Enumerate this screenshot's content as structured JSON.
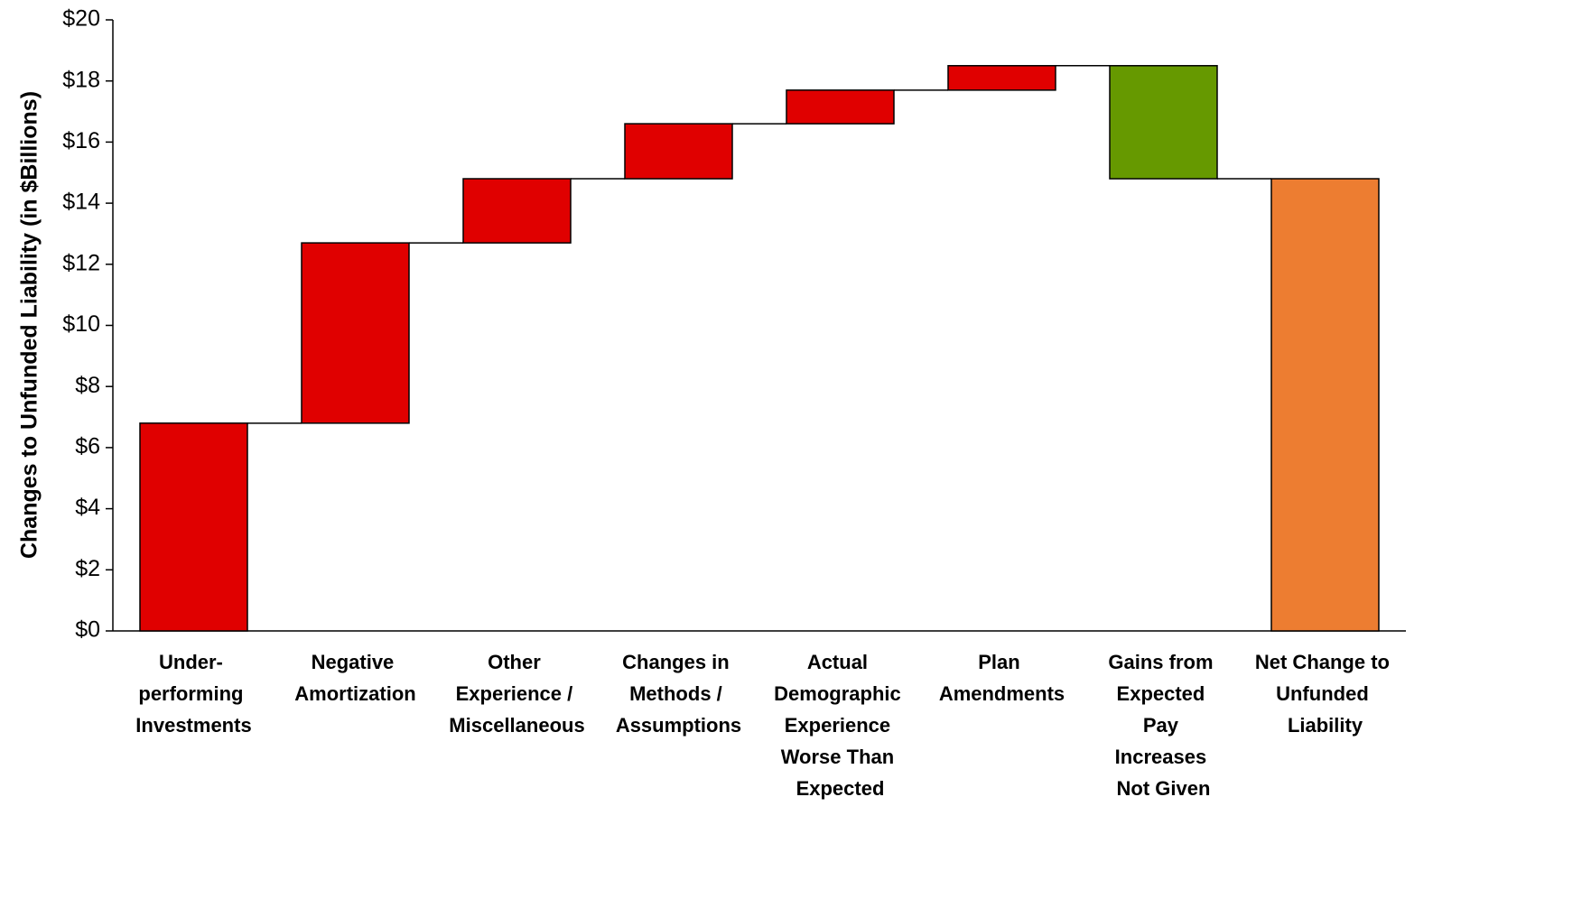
{
  "chart_data": {
    "type": "waterfall",
    "y_label": "Changes to Unfunded Liability (in $Billions)",
    "categories": [
      "Under-\nperforming\nInvestments",
      "Negative\nAmortization",
      "Other\nExperience /\nMiscellaneous",
      "Changes in\nMethods  /\nAssumptions",
      "Actual\nDemographic\nExperience\nWorse Than\nExpected",
      "Plan\nAmendments",
      "Gains from\nExpected\nPay\nIncreases\nNot Given",
      "Net Change to\nUnfunded\nLiability"
    ],
    "values": [
      6.8,
      5.9,
      2.1,
      1.8,
      1.1,
      0.8,
      -3.7,
      14.8
    ],
    "measure": [
      "relative",
      "relative",
      "relative",
      "relative",
      "relative",
      "relative",
      "relative",
      "total"
    ],
    "colors": [
      "#e00000",
      "#e00000",
      "#e00000",
      "#e00000",
      "#e00000",
      "#e00000",
      "#669900",
      "#ed7d31"
    ],
    "ylim": [
      0,
      20
    ],
    "yticks": [
      {
        "value": 0,
        "label": "$0"
      },
      {
        "value": 2,
        "label": "$2"
      },
      {
        "value": 4,
        "label": "$4"
      },
      {
        "value": 6,
        "label": "$6"
      },
      {
        "value": 8,
        "label": "$8"
      },
      {
        "value": 10,
        "label": "$10"
      },
      {
        "value": 12,
        "label": "$12"
      },
      {
        "value": 14,
        "label": "$14"
      },
      {
        "value": 16,
        "label": "$16"
      },
      {
        "value": 18,
        "label": "$18"
      },
      {
        "value": 20,
        "label": "$20"
      }
    ],
    "grid": false
  }
}
